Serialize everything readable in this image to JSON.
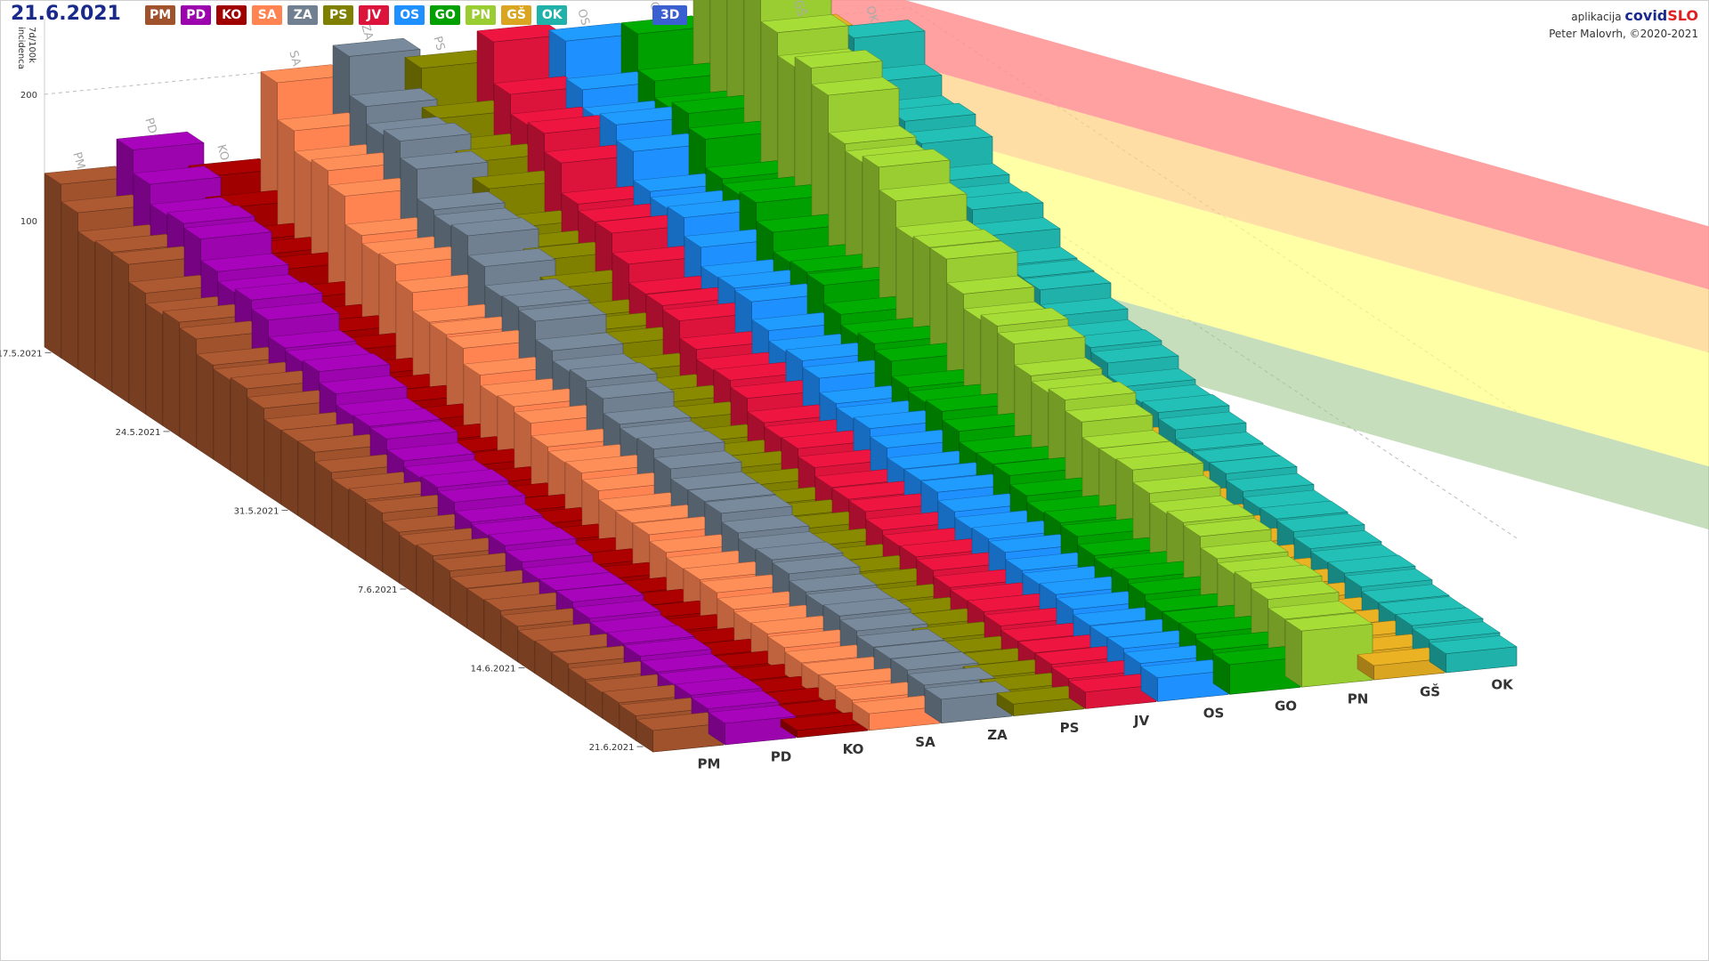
{
  "header": {
    "date": "21.6.2021",
    "mode_button": "3D"
  },
  "credits": {
    "app_word": "aplikacija",
    "brand_a": "covid",
    "brand_b": "SLO",
    "author": "Peter Malovrh, ©2020-2021"
  },
  "legend": [
    {
      "code": "PM",
      "color": "#a0522d"
    },
    {
      "code": "PD",
      "color": "#9c04ad"
    },
    {
      "code": "KO",
      "color": "#a00000"
    },
    {
      "code": "SA",
      "color": "#ff8452"
    },
    {
      "code": "ZA",
      "color": "#708090"
    },
    {
      "code": "PS",
      "color": "#808000"
    },
    {
      "code": "JV",
      "color": "#dc143c"
    },
    {
      "code": "OS",
      "color": "#1e90ff"
    },
    {
      "code": "GO",
      "color": "#00a000"
    },
    {
      "code": "PN",
      "color": "#9acd32"
    },
    {
      "code": "GŠ",
      "color": "#daa520"
    },
    {
      "code": "OK",
      "color": "#20b2aa"
    }
  ],
  "chart_data": {
    "type": "bar3d",
    "ylabel": "7d/100k",
    "ylabel2": "incidenca",
    "yticks": [
      100,
      200
    ],
    "ylim": [
      0,
      260
    ],
    "date_labels": [
      "17.5.2021",
      "24.5.2021",
      "31.5.2021",
      "7.6.2021",
      "14.6.2021",
      "21.6.2021"
    ],
    "days": 36,
    "series": [
      {
        "name": "PM",
        "start": 130,
        "end": 18
      },
      {
        "name": "PD",
        "start": 150,
        "end": 18
      },
      {
        "name": "KO",
        "start": 125,
        "end": 6
      },
      {
        "name": "SA",
        "start": 190,
        "end": 14
      },
      {
        "name": "ZA",
        "start": 205,
        "end": 20
      },
      {
        "name": "PS",
        "start": 190,
        "end": 10
      },
      {
        "name": "JV",
        "start": 205,
        "end": 14
      },
      {
        "name": "OS",
        "start": 200,
        "end": 20
      },
      {
        "name": "GO",
        "start": 200,
        "end": 25
      },
      {
        "name": "PN",
        "start": 310,
        "end": 45
      },
      {
        "name": "GŠ",
        "start": 190,
        "end": 12
      },
      {
        "name": "OK",
        "start": 180,
        "end": 16
      }
    ],
    "thresholds": [
      {
        "color": "#a0c890",
        "opacity": 0.6
      },
      {
        "color": "#ffff80",
        "opacity": 0.7
      },
      {
        "color": "#ffd080",
        "opacity": 0.7
      },
      {
        "color": "#ff9090",
        "opacity": 0.85
      }
    ]
  }
}
